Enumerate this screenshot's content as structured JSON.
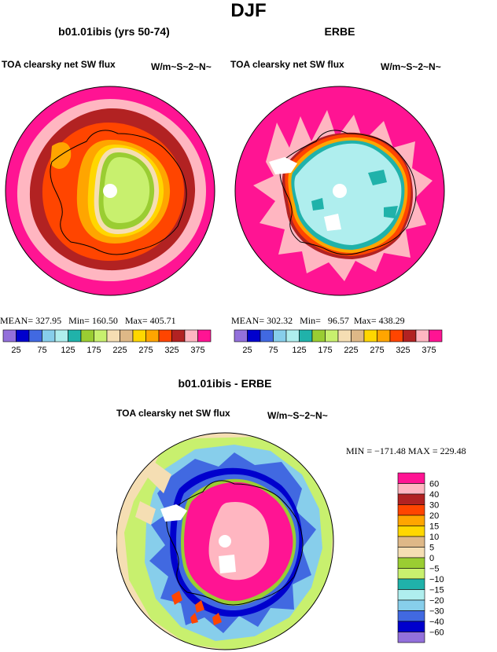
{
  "page": {
    "title": "DJF"
  },
  "palettes": {
    "abs": [
      "#9370db",
      "#0000cd",
      "#4169e1",
      "#87ceeb",
      "#afeeee",
      "#20b2aa",
      "#9acd32",
      "#c8f06e",
      "#f5deb3",
      "#deb887",
      "#ffd700",
      "#ffa500",
      "#ff4500",
      "#b22222",
      "#ffb6c1",
      "#ff1493"
    ],
    "diff": [
      "#9370db",
      "#0000cd",
      "#4169e1",
      "#87ceeb",
      "#afeeee",
      "#20b2aa",
      "#c8f06e",
      "#9acd32",
      "#f5deb3",
      "#deb887",
      "#ffd700",
      "#ffa500",
      "#ff4500",
      "#b22222",
      "#ffb6c1",
      "#ff1493"
    ],
    "coast": "#000000",
    "land_white": "#ffffff"
  },
  "chart_data": [
    {
      "type": "heatmap",
      "projection": "south polar stereographic",
      "title": "b01.01ibis (yrs 50-74)",
      "left_label": "TOA clearsky net SW flux",
      "right_label": "W/m~S~2~N~",
      "stats": {
        "mean_label": "MEAN=",
        "mean": "327.95",
        "min_label": "Min=",
        "min": "160.50",
        "max_label": "Max=",
        "max": "405.71"
      },
      "colorbar_ticks": [
        "25",
        "75",
        "125",
        "175",
        "225",
        "275",
        "325",
        "375"
      ],
      "levels": [
        25,
        50,
        75,
        100,
        125,
        150,
        175,
        200,
        225,
        250,
        275,
        300,
        325,
        350,
        375
      ]
    },
    {
      "type": "heatmap",
      "projection": "south polar stereographic",
      "title": "ERBE",
      "left_label": "TOA clearsky net SW flux",
      "right_label": "W/m~S~2~N~",
      "stats": {
        "mean_label": "MEAN=",
        "mean": "302.32",
        "min_label": "Min=",
        "min": "96.57",
        "max_label": "Max=",
        "max": "438.29"
      },
      "colorbar_ticks": [
        "25",
        "75",
        "125",
        "175",
        "225",
        "275",
        "325",
        "375"
      ],
      "levels": [
        25,
        50,
        75,
        100,
        125,
        150,
        175,
        200,
        225,
        250,
        275,
        300,
        325,
        350,
        375
      ]
    },
    {
      "type": "heatmap",
      "projection": "south polar stereographic",
      "title": "b01.01ibis - ERBE",
      "left_label": "TOA clearsky net SW flux",
      "right_label": "W/m~S~2~N~",
      "stats": {
        "text": "MIN = −171.48 MAX = 229.48"
      },
      "colorbar_labels": [
        "60",
        "40",
        "30",
        "20",
        "15",
        "10",
        "5",
        "0",
        "−5",
        "−10",
        "−15",
        "−20",
        "−30",
        "−40",
        "−60"
      ],
      "levels": [
        -60,
        -40,
        -30,
        -20,
        -15,
        -10,
        -5,
        0,
        5,
        10,
        15,
        20,
        30,
        40,
        60
      ]
    }
  ]
}
